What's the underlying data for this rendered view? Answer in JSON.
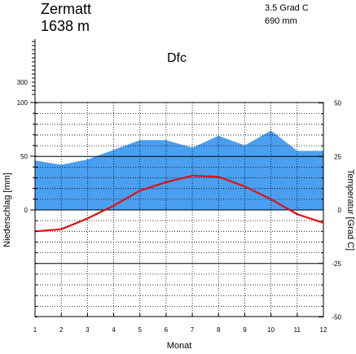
{
  "header": {
    "station": "Zermatt",
    "elevation": "1638 m",
    "mean_temperature": "3.5 Grad C",
    "annual_precipitation": "690 mm",
    "climate_class": "Dfc"
  },
  "chart_data": {
    "type": "line",
    "xlabel": "Monat",
    "y_left_label": "Niederschlag [mm]",
    "y_right_label": "Temperatur [Grad C]",
    "x": [
      1,
      2,
      3,
      4,
      5,
      6,
      7,
      8,
      9,
      10,
      11,
      12
    ],
    "x_ticks": [
      "1",
      "2",
      "3",
      "4",
      "5",
      "6",
      "7",
      "8",
      "9",
      "10",
      "11",
      "12"
    ],
    "y_left_ticks": [
      "300",
      "100",
      "50",
      "0"
    ],
    "y_right_ticks": [
      "50",
      "25",
      "0",
      "-25",
      "-50"
    ],
    "ylim_temperature": [
      -50,
      50
    ],
    "precipitation_axis_scale": "linear 0-100 mm, compressed above 100 mm",
    "grid": true,
    "colors": {
      "precipitation_fill": "#4a9ff0",
      "temperature_line": "#dd1111"
    },
    "series": [
      {
        "kind": "area",
        "axis": "left",
        "values": [
          46,
          42,
          47,
          56,
          65,
          65,
          58,
          69,
          60,
          74,
          55,
          55
        ]
      },
      {
        "kind": "line",
        "axis": "right",
        "values": [
          -10,
          -9,
          -4,
          2,
          9,
          13,
          16,
          15.5,
          11,
          5,
          -2,
          -6
        ]
      }
    ]
  }
}
